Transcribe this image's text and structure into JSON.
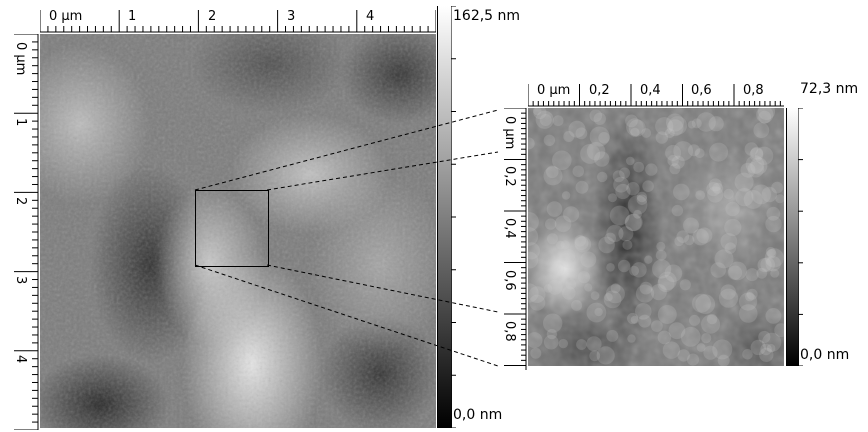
{
  "main_scan": {
    "x_ruler_labels": [
      "0 µm",
      "1",
      "2",
      "3",
      "4"
    ],
    "y_ruler_labels": [
      "0 µm",
      "1",
      "2",
      "3",
      "4"
    ],
    "colorbar_max": "162,5 nm",
    "colorbar_min": "0,0 nm"
  },
  "zoom_scan": {
    "x_ruler_labels": [
      "0 µm",
      "0,2",
      "0,4",
      "0,6",
      "0,8"
    ],
    "y_ruler_labels": [
      "0 µm",
      "0,2",
      "0,4",
      "0,6",
      "0,8"
    ],
    "colorbar_max": "72,3 nm",
    "colorbar_min": "0,0 nm"
  },
  "colors": {
    "scan_dark": "#1a1a1a",
    "scan_mid": "#808080",
    "scan_light": "#e6e6e6",
    "ruler": "#000000"
  }
}
